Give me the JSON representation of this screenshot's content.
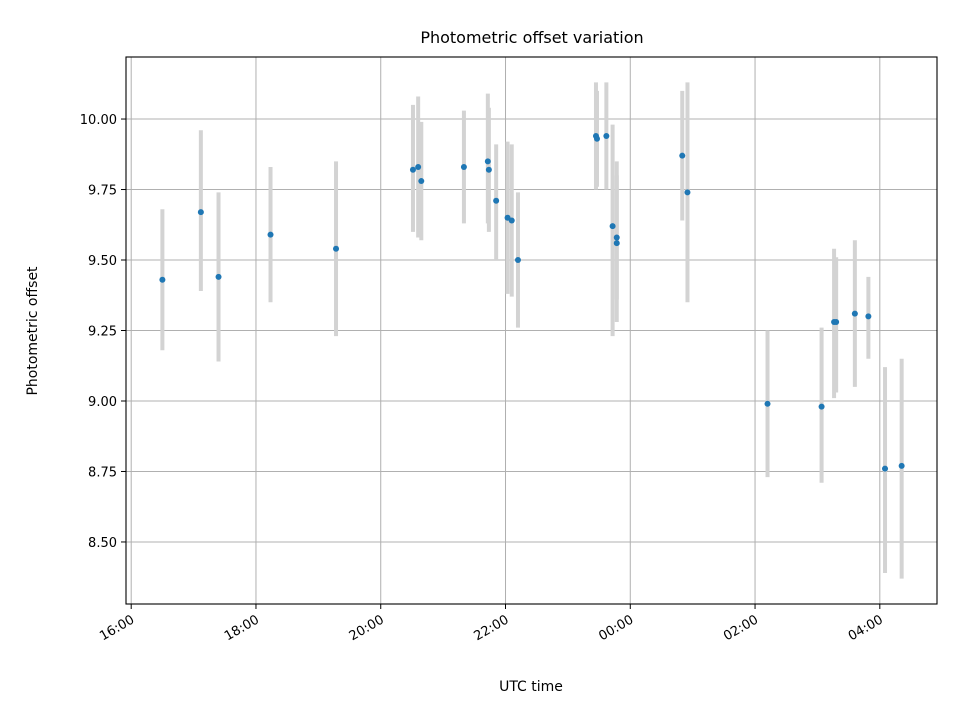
{
  "chart_data": {
    "type": "scatter",
    "title": "Photometric offset variation",
    "xlabel": "UTC time",
    "ylabel": "Photometric offset",
    "x_axis_type": "time",
    "xlim": [
      "15:55",
      "04:55 (+1 day)"
    ],
    "ylim": [
      8.28,
      10.22
    ],
    "grid": true,
    "x_ticks": [
      "16:00",
      "18:00",
      "20:00",
      "22:00",
      "00:00",
      "02:00",
      "04:00"
    ],
    "y_ticks": [
      "8.50",
      "8.75",
      "9.00",
      "9.25",
      "9.50",
      "9.75",
      "10.00"
    ],
    "marker_color": "#1f77b4",
    "errorbar_color": "#d3d3d3",
    "series": [
      {
        "points": [
          {
            "x": "16:30",
            "y": 9.43,
            "ylo": 9.18,
            "yhi": 9.68
          },
          {
            "x": "17:07",
            "y": 9.67,
            "ylo": 9.39,
            "yhi": 9.96
          },
          {
            "x": "17:24",
            "y": 9.44,
            "ylo": 9.14,
            "yhi": 9.74
          },
          {
            "x": "18:14",
            "y": 9.59,
            "ylo": 9.35,
            "yhi": 9.83
          },
          {
            "x": "19:17",
            "y": 9.54,
            "ylo": 9.23,
            "yhi": 9.85
          },
          {
            "x": "20:31",
            "y": 9.82,
            "ylo": 9.6,
            "yhi": 10.05
          },
          {
            "x": "20:36",
            "y": 9.83,
            "ylo": 9.58,
            "yhi": 10.08
          },
          {
            "x": "20:39",
            "y": 9.78,
            "ylo": 9.57,
            "yhi": 9.99
          },
          {
            "x": "21:20",
            "y": 9.83,
            "ylo": 9.63,
            "yhi": 10.03
          },
          {
            "x": "21:43",
            "y": 9.85,
            "ylo": 9.63,
            "yhi": 10.09
          },
          {
            "x": "21:44",
            "y": 9.82,
            "ylo": 9.6,
            "yhi": 10.04
          },
          {
            "x": "21:51",
            "y": 9.71,
            "ylo": 9.5,
            "yhi": 9.91
          },
          {
            "x": "22:02",
            "y": 9.65,
            "ylo": 9.38,
            "yhi": 9.92
          },
          {
            "x": "22:06",
            "y": 9.64,
            "ylo": 9.37,
            "yhi": 9.91
          },
          {
            "x": "22:12",
            "y": 9.5,
            "ylo": 9.26,
            "yhi": 9.74
          },
          {
            "x": "23:27",
            "y": 9.94,
            "ylo": 9.75,
            "yhi": 10.13
          },
          {
            "x": "23:28",
            "y": 9.93,
            "ylo": 9.76,
            "yhi": 10.1
          },
          {
            "x": "23:37",
            "y": 9.94,
            "ylo": 9.75,
            "yhi": 10.13
          },
          {
            "x": "23:43",
            "y": 9.62,
            "ylo": 9.23,
            "yhi": 9.98
          },
          {
            "x": "23:47",
            "y": 9.58,
            "ylo": 9.36,
            "yhi": 9.8
          },
          {
            "x": "23:47",
            "y": 9.56,
            "ylo": 9.28,
            "yhi": 9.85
          },
          {
            "x": "00:50",
            "y": 9.87,
            "ylo": 9.64,
            "yhi": 10.1
          },
          {
            "x": "00:55",
            "y": 9.74,
            "ylo": 9.35,
            "yhi": 10.13
          },
          {
            "x": "02:12",
            "y": 8.99,
            "ylo": 8.73,
            "yhi": 9.25
          },
          {
            "x": "03:04",
            "y": 8.98,
            "ylo": 8.71,
            "yhi": 9.26
          },
          {
            "x": "03:16",
            "y": 9.28,
            "ylo": 9.01,
            "yhi": 9.54
          },
          {
            "x": "03:18",
            "y": 9.28,
            "ylo": 9.03,
            "yhi": 9.51
          },
          {
            "x": "03:36",
            "y": 9.31,
            "ylo": 9.05,
            "yhi": 9.57
          },
          {
            "x": "03:49",
            "y": 9.3,
            "ylo": 9.15,
            "yhi": 9.44
          },
          {
            "x": "04:05",
            "y": 8.76,
            "ylo": 8.39,
            "yhi": 9.12
          },
          {
            "x": "04:21",
            "y": 8.77,
            "ylo": 8.37,
            "yhi": 9.15
          }
        ]
      }
    ]
  }
}
